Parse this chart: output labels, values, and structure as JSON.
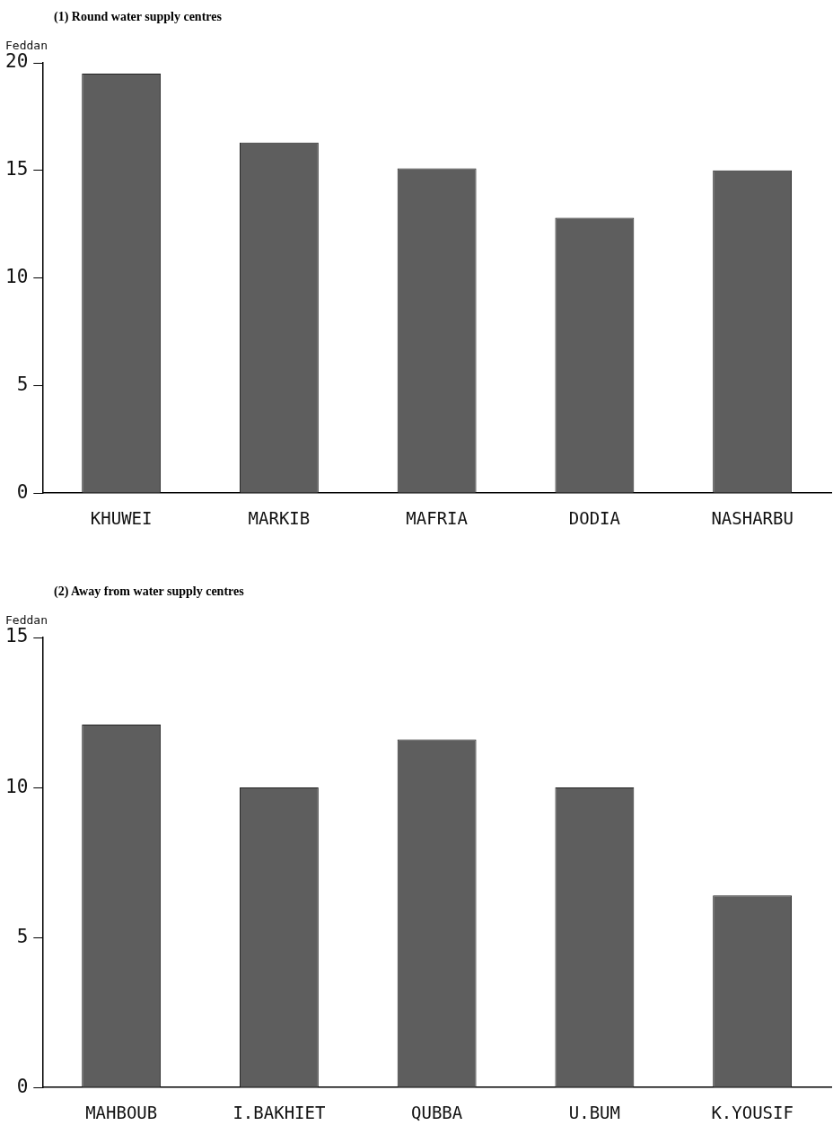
{
  "chart_data": [
    {
      "type": "bar",
      "title": "(1) Round water supply centres",
      "ylabel": "Feddan",
      "categories": [
        "KHUWEI",
        "MARKIB",
        "MAFRIA",
        "DODIA",
        "NASHARBU"
      ],
      "values": [
        19.5,
        16.3,
        15.1,
        12.8,
        15.0
      ],
      "color": "#5e5e5e",
      "ylim": [
        0,
        20
      ],
      "yticks": [
        0,
        5,
        10,
        15,
        20
      ],
      "grid": false,
      "legend": false
    },
    {
      "type": "bar",
      "title": "(2) Away from water supply centres",
      "ylabel": "Feddan",
      "categories": [
        "MAHBOUB",
        "I.BAKHIET",
        "QUBBA",
        "U.BUM",
        "K.YOUSIF"
      ],
      "values": [
        12.1,
        10.0,
        11.6,
        10.0,
        6.4
      ],
      "color": "#5e5e5e",
      "ylim": [
        0,
        15
      ],
      "yticks": [
        0,
        5,
        10,
        15
      ],
      "grid": false,
      "legend": false
    }
  ]
}
